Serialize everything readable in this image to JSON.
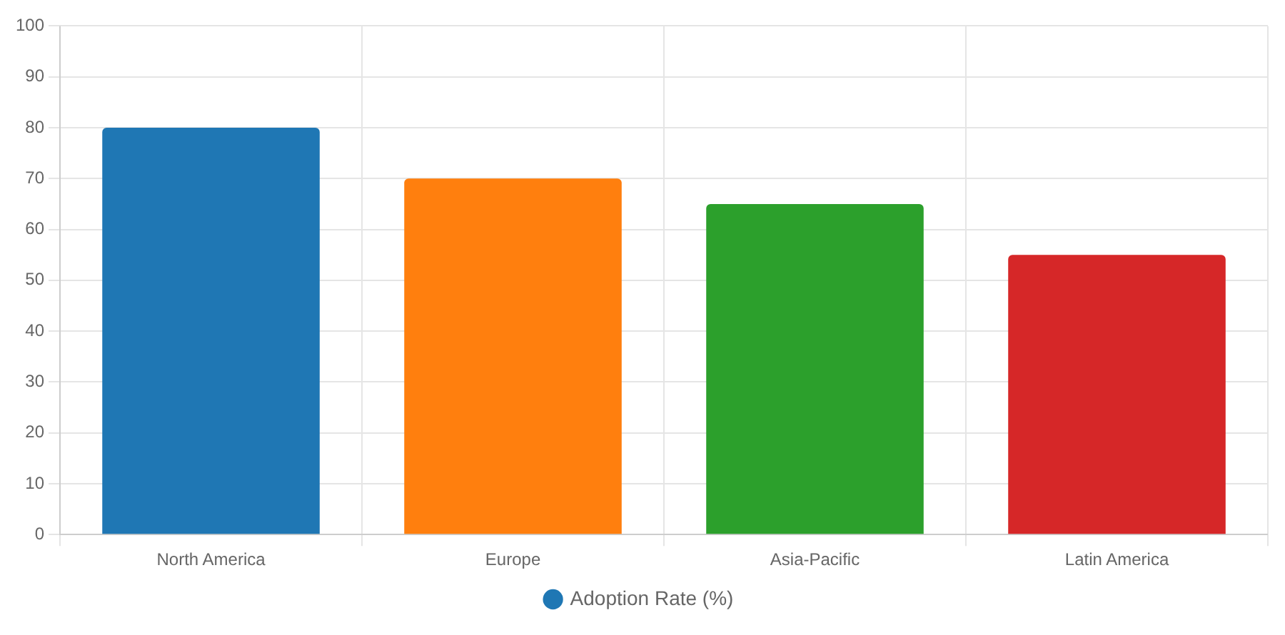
{
  "chart_data": {
    "type": "bar",
    "categories": [
      "North America",
      "Europe",
      "Asia-Pacific",
      "Latin America"
    ],
    "series": [
      {
        "name": "Adoption Rate (%)",
        "colors": [
          "#1f77b4",
          "#ff7f0e",
          "#2ca02c",
          "#d62728"
        ],
        "values": [
          80,
          70,
          65,
          55
        ]
      }
    ],
    "ylim": [
      0,
      100
    ],
    "yticks": [
      0,
      10,
      20,
      30,
      40,
      50,
      60,
      70,
      80,
      90,
      100
    ],
    "grid": true,
    "legend": "bottom"
  }
}
